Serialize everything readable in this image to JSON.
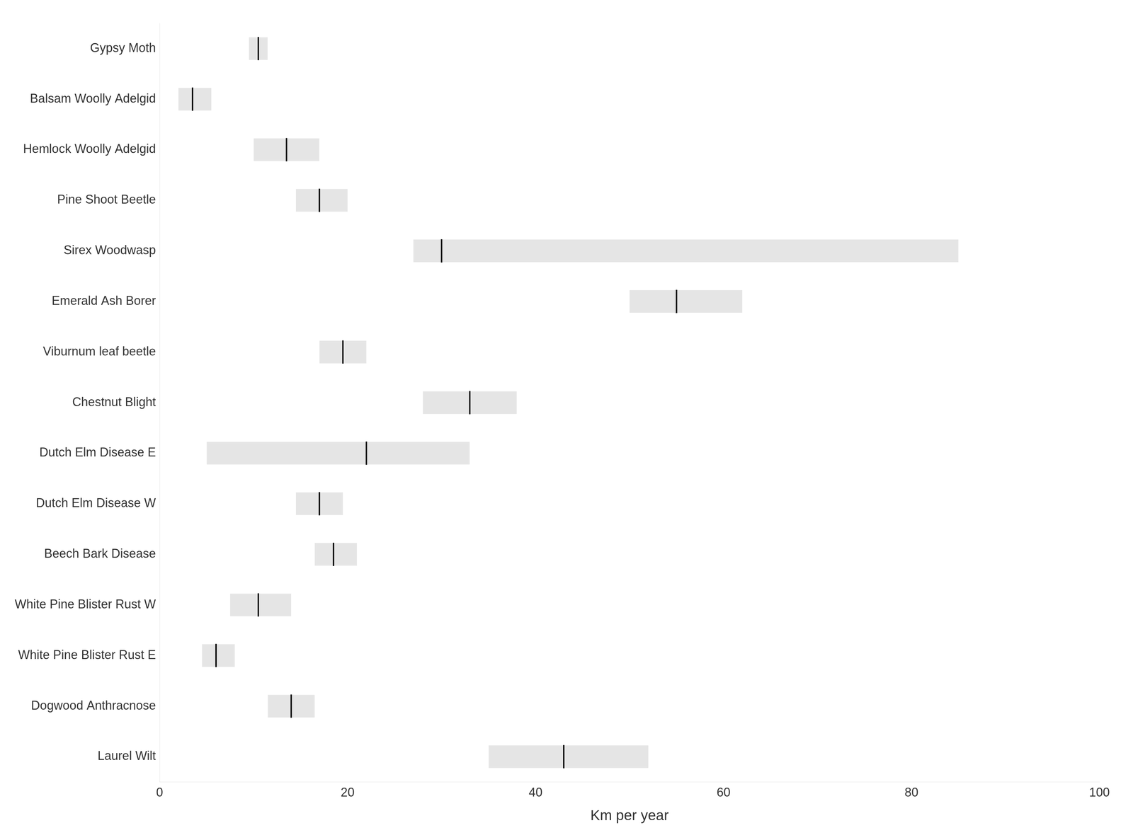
{
  "chart_data": {
    "type": "bar",
    "orientation": "horizontal",
    "categories": [
      "Gypsy Moth",
      "Balsam Woolly Adelgid",
      "Hemlock Woolly Adelgid",
      "Pine Shoot Beetle",
      "Sirex Woodwasp",
      "Emerald Ash Borer",
      "Viburnum leaf beetle",
      "Chestnut Blight",
      "Dutch Elm Disease E",
      "Dutch Elm Disease W",
      "Beech Bark Disease",
      "White Pine Blister Rust W",
      "White Pine Blister Rust E",
      "Dogwood Anthracnose",
      "Laurel Wilt"
    ],
    "low": [
      9.5,
      2.0,
      10.0,
      14.5,
      27.0,
      50.0,
      17.0,
      28.0,
      5.0,
      14.5,
      16.5,
      7.5,
      4.5,
      11.5,
      35.0
    ],
    "values": [
      10.5,
      3.5,
      13.5,
      17.0,
      30.0,
      55.0,
      19.5,
      33.0,
      22.0,
      17.0,
      18.5,
      10.5,
      6.0,
      14.0,
      43.0
    ],
    "high": [
      11.5,
      5.5,
      17.0,
      20.0,
      85.0,
      62.0,
      22.0,
      38.0,
      33.0,
      19.5,
      21.0,
      14.0,
      8.0,
      16.5,
      52.0
    ],
    "xlabel": "Km per year",
    "xlim": [
      0,
      100
    ],
    "xticks": [
      0,
      20,
      40,
      60,
      80,
      100
    ],
    "grid": false
  }
}
